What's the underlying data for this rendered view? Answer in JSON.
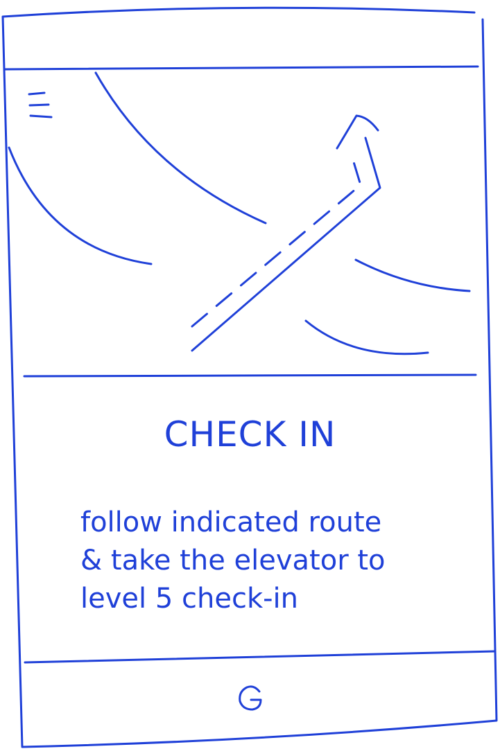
{
  "colors": {
    "ink": "#1f40d8",
    "background": "#ffffff"
  },
  "header": {
    "menu_icon": "hamburger-icon"
  },
  "map": {
    "route_style": "dashed-arrow"
  },
  "content": {
    "title": "CHECK IN",
    "instructions": [
      "follow indicated route",
      "& take the elevator to",
      "level 5 check-in"
    ]
  },
  "footer": {
    "home_icon": "home-circle-icon"
  }
}
